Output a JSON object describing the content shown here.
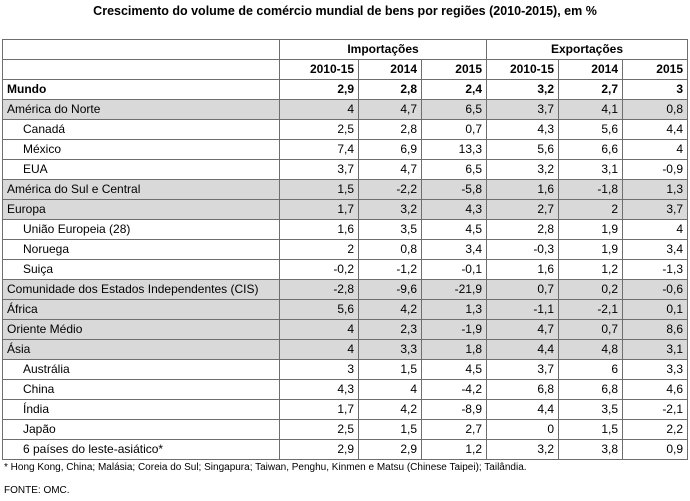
{
  "title": "Crescimento do volume de comércio mundial de bens por regiões (2010-2015), em %",
  "headers": {
    "imports": "Importações",
    "exports": "Exportações",
    "periods": [
      "2010-15",
      "2014",
      "2015",
      "2010-15",
      "2014",
      "2015"
    ]
  },
  "rows": [
    {
      "type": "world",
      "name": "Mundo",
      "values": [
        "2,9",
        "2,8",
        "2,4",
        "3,2",
        "2,7",
        "3"
      ]
    },
    {
      "type": "region",
      "name": "América do Norte",
      "values": [
        "4",
        "4,7",
        "6,5",
        "3,7",
        "4,1",
        "0,8"
      ]
    },
    {
      "type": "country",
      "name": "Canadá",
      "values": [
        "2,5",
        "2,8",
        "0,7",
        "4,3",
        "5,6",
        "4,4"
      ]
    },
    {
      "type": "country",
      "name": "México",
      "values": [
        "7,4",
        "6,9",
        "13,3",
        "5,6",
        "6,6",
        "4"
      ]
    },
    {
      "type": "country",
      "name": "EUA",
      "values": [
        "3,7",
        "4,7",
        "6,5",
        "3,2",
        "3,1",
        "-0,9"
      ]
    },
    {
      "type": "region",
      "name": "América do Sul e Central",
      "values": [
        "1,5",
        "-2,2",
        "-5,8",
        "1,6",
        "-1,8",
        "1,3"
      ]
    },
    {
      "type": "region",
      "name": "Europa",
      "values": [
        "1,7",
        "3,2",
        "4,3",
        "2,7",
        "2",
        "3,7"
      ]
    },
    {
      "type": "country",
      "name": "União Europeia (28)",
      "values": [
        "1,6",
        "3,5",
        "4,5",
        "2,8",
        "1,9",
        "4"
      ]
    },
    {
      "type": "country",
      "name": "Noruega",
      "values": [
        "2",
        "0,8",
        "3,4",
        "-0,3",
        "1,9",
        "3,4"
      ]
    },
    {
      "type": "country",
      "name": "Suiça",
      "values": [
        "-0,2",
        "-1,2",
        "-0,1",
        "1,6",
        "1,2",
        "-1,3"
      ]
    },
    {
      "type": "region",
      "name": "Comunidade dos Estados Independentes (CIS)",
      "values": [
        "-2,8",
        "-9,6",
        "-21,9",
        "0,7",
        "0,2",
        "-0,6"
      ]
    },
    {
      "type": "region",
      "name": "África",
      "values": [
        "5,6",
        "4,2",
        "1,3",
        "-1,1",
        "-2,1",
        "0,1"
      ]
    },
    {
      "type": "region",
      "name": "Oriente Médio",
      "values": [
        "4",
        "2,3",
        "-1,9",
        "4,7",
        "0,7",
        "8,6"
      ]
    },
    {
      "type": "region",
      "name": "Ásia",
      "values": [
        "4",
        "3,3",
        "1,8",
        "4,4",
        "4,8",
        "3,1"
      ]
    },
    {
      "type": "country",
      "name": "Austrália",
      "values": [
        "3",
        "1,5",
        "4,5",
        "3,7",
        "6",
        "3,3"
      ]
    },
    {
      "type": "country",
      "name": "China",
      "values": [
        "4,3",
        "4",
        "-4,2",
        "6,8",
        "6,8",
        "4,6"
      ]
    },
    {
      "type": "country",
      "name": "Índia",
      "values": [
        "1,7",
        "4,2",
        "-8,9",
        "4,4",
        "3,5",
        "-2,1"
      ]
    },
    {
      "type": "country",
      "name": "Japão",
      "values": [
        "2,5",
        "1,5",
        "2,7",
        "0",
        "1,5",
        "2,2"
      ]
    },
    {
      "type": "country",
      "name": "6 países do leste-asiático*",
      "values": [
        "2,9",
        "2,9",
        "1,2",
        "3,2",
        "3,8",
        "0,9"
      ]
    }
  ],
  "footnote": "* Hong Kong, China; Malásia; Coreia do Sul; Singapura; Taiwan, Penghu, Kinmen e Matsu (Chinese Taipei); Tailândia.",
  "source": "FONTE: OMC."
}
